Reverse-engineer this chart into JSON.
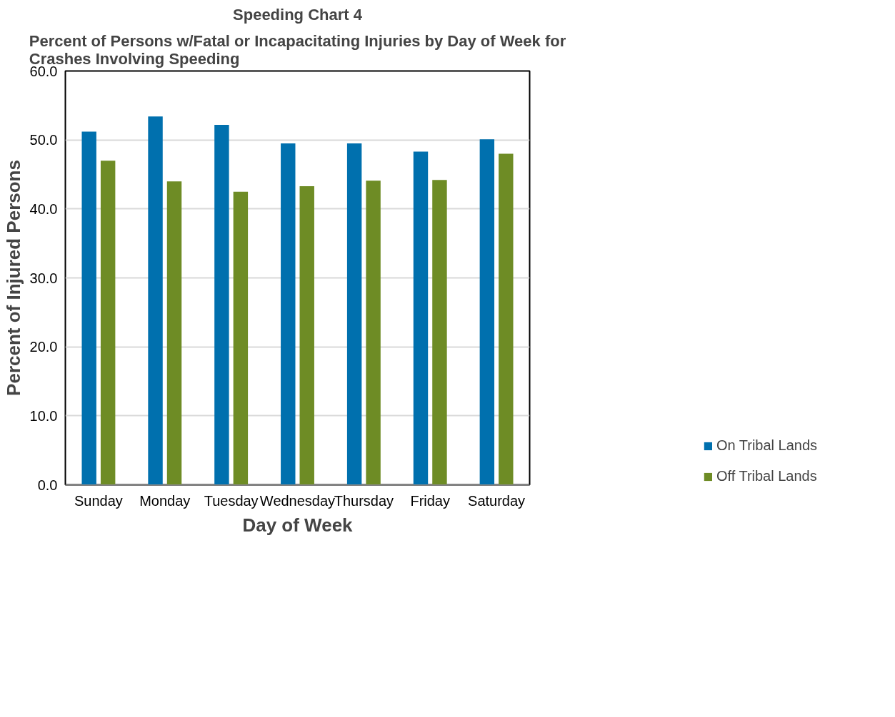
{
  "chart_data": {
    "type": "bar",
    "title": "Speeding Chart 4",
    "subtitle": "Percent of Persons w/Fatal or Incapacitating Injuries by Day of Week for\nCrashes Involving Speeding",
    "xlabel": "Day of Week",
    "ylabel": "Percent of Injured Persons",
    "categories": [
      "Sunday",
      "Monday",
      "Tuesday",
      "Wednesday",
      "Thursday",
      "Friday",
      "Saturday"
    ],
    "series": [
      {
        "name": "On Tribal Lands",
        "color": "#0070ae",
        "values": [
          51.2,
          53.4,
          52.2,
          49.5,
          49.5,
          48.3,
          50.1
        ]
      },
      {
        "name": "Off Tribal Lands",
        "color": "#6e8c25",
        "values": [
          47.0,
          44.0,
          42.5,
          43.3,
          44.1,
          44.2,
          48.0
        ]
      }
    ],
    "ylim": [
      0,
      60
    ],
    "yticks": [
      {
        "value": 0,
        "label": "0.0"
      },
      {
        "value": 10,
        "label": "10.0"
      },
      {
        "value": 20,
        "label": "20.0"
      },
      {
        "value": 30,
        "label": "30.0"
      },
      {
        "value": 40,
        "label": "40.0"
      },
      {
        "value": 50,
        "label": "50.0"
      },
      {
        "value": 60,
        "label": "60.0"
      }
    ],
    "grid": "y",
    "legend": "bottom right"
  }
}
